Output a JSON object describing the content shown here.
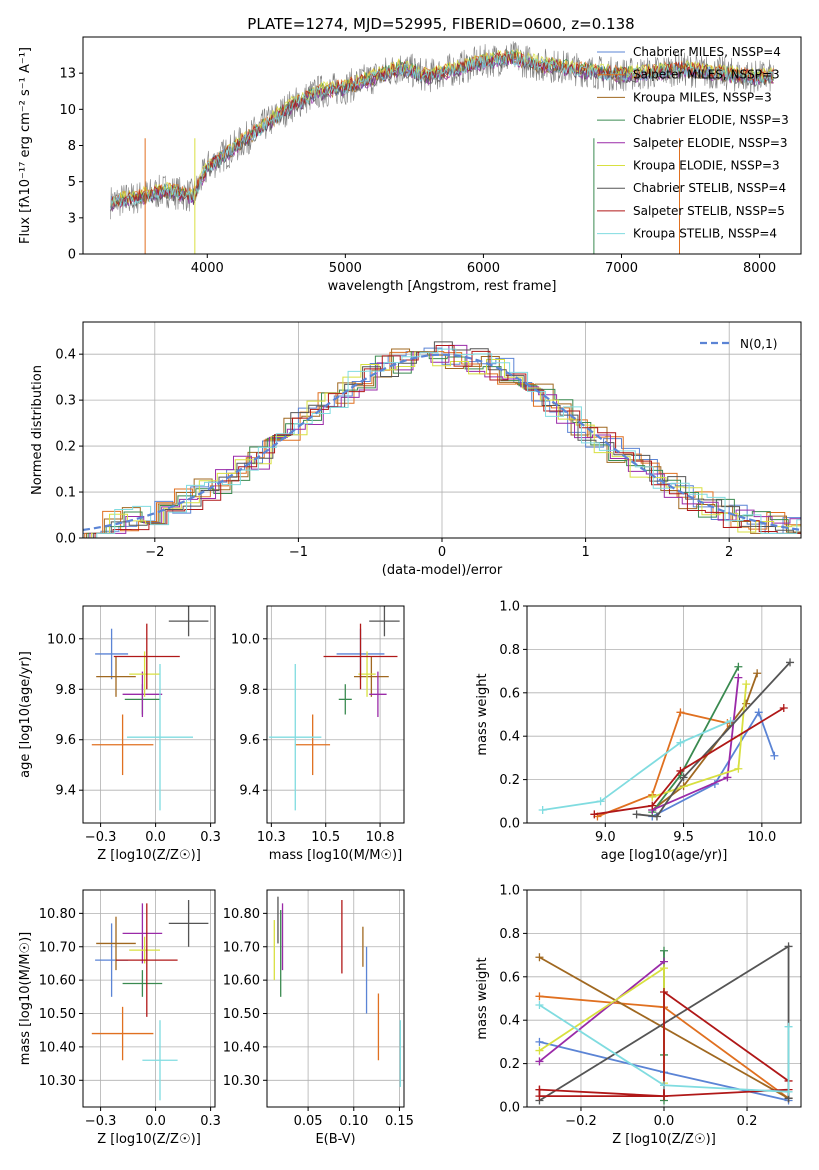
{
  "figure": {
    "title": "PLATE=1274, MJD=52995, FIBERID=0600, z=0.138"
  },
  "chart_data": [
    {
      "type": "line",
      "title": "PLATE=1274, MJD=52995, FIBERID=0600, z=0.138",
      "xlabel": "wavelength [Angstrom, rest frame]",
      "ylabel": "Flux [fλ10⁻¹⁷ erg cm⁻² s⁻¹ A⁻¹]",
      "xlim": [
        3100,
        8300
      ],
      "ylim": [
        0,
        15
      ],
      "xticks": [
        4000,
        5000,
        6000,
        7000,
        8000
      ],
      "yticks": [
        0.0,
        2.5,
        5.0,
        7.5,
        10.0,
        12.5
      ],
      "legend_position": "right",
      "series": [
        {
          "name": "Chabrier MILES, NSSP=4",
          "color": "#5b84d5"
        },
        {
          "name": "Salpeter MILES, NSSP=3",
          "color": "#e07020"
        },
        {
          "name": "Kroupa MILES, NSSP=3",
          "color": "#a06820"
        },
        {
          "name": "Chabrier ELODIE, NSSP=3",
          "color": "#3a8a50"
        },
        {
          "name": "Salpeter ELODIE, NSSP=3",
          "color": "#9a2aa8"
        },
        {
          "name": "Kroupa ELODIE, NSSP=3",
          "color": "#d8e040"
        },
        {
          "name": "Chabrier STELIB, NSSP=4",
          "color": "#555555"
        },
        {
          "name": "Salpeter STELIB, NSSP=5",
          "color": "#b01818"
        },
        {
          "name": "Kroupa STELIB, NSSP=4",
          "color": "#80dce0"
        }
      ],
      "continuum": {
        "x": [
          3300,
          3500,
          3700,
          3900,
          4000,
          4200,
          4400,
          4600,
          4800,
          5000,
          5200,
          5400,
          5600,
          5800,
          6000,
          6200,
          6400,
          6600,
          6800,
          7000,
          7200,
          7400,
          7600,
          7800,
          8000,
          8100
        ],
        "y": [
          3.6,
          3.9,
          4.4,
          4.0,
          6.0,
          7.4,
          8.8,
          10.2,
          11.2,
          11.5,
          12.2,
          12.9,
          12.3,
          12.8,
          13.3,
          13.6,
          13.1,
          12.9,
          12.6,
          12.4,
          12.5,
          12.8,
          12.6,
          12.4,
          12.2,
          12.3
        ]
      },
      "observed_data_color": "#808080"
    },
    {
      "type": "histogram",
      "xlabel": "(data-model)/error",
      "ylabel": "Normed distribution",
      "xlim": [
        -2.5,
        2.5
      ],
      "ylim": [
        0,
        0.47
      ],
      "xticks": [
        -2,
        -1,
        0,
        1,
        2
      ],
      "yticks": [
        0.0,
        0.1,
        0.2,
        0.3,
        0.4
      ],
      "grid": true,
      "legend_position": "top-right",
      "reference_curve": {
        "name": "N(0,1)",
        "color": "#5b84d5",
        "style": "dashed"
      }
    },
    {
      "type": "scatter",
      "xlabel": "Z [log10(Z/Z☉)]",
      "ylabel": "age  [log10(age/yr)]",
      "xlim": [
        -0.33,
        0.27
      ],
      "ylim": [
        9.27,
        10.13
      ],
      "xticks": [
        -0.25,
        0.0,
        0.25
      ],
      "yticks": [
        9.4,
        9.6,
        9.8,
        10.0
      ],
      "grid": true,
      "points": [
        {
          "series": "Chabrier MILES",
          "x": -0.2,
          "y": 9.94,
          "xerr": 0.075,
          "yerr": 0.1
        },
        {
          "series": "Salpeter MILES",
          "x": -0.15,
          "y": 9.58,
          "xerr": 0.14,
          "yerr": 0.12
        },
        {
          "series": "Kroupa MILES",
          "x": -0.18,
          "y": 9.85,
          "xerr": 0.09,
          "yerr": 0.08
        },
        {
          "series": "Chabrier ELODIE",
          "x": -0.06,
          "y": 9.76,
          "xerr": 0.08,
          "yerr": 0.06
        },
        {
          "series": "Salpeter ELODIE",
          "x": -0.06,
          "y": 9.78,
          "xerr": 0.09,
          "yerr": 0.09
        },
        {
          "series": "Kroupa ELODIE",
          "x": -0.05,
          "y": 9.86,
          "xerr": 0.07,
          "yerr": 0.09
        },
        {
          "series": "Chabrier STELIB",
          "x": 0.15,
          "y": 10.07,
          "xerr": 0.09,
          "yerr": 0.06
        },
        {
          "series": "Salpeter STELIB",
          "x": -0.04,
          "y": 9.93,
          "xerr": 0.15,
          "yerr": 0.13
        },
        {
          "series": "Kroupa STELIB",
          "x": 0.02,
          "y": 9.61,
          "xerr": 0.15,
          "yerr": 0.29
        }
      ]
    },
    {
      "type": "scatter",
      "xlabel": "mass [log10(M/M☉)]",
      "ylabel": "",
      "xlim": [
        10.23,
        10.86
      ],
      "ylim": [
        9.27,
        10.13
      ],
      "xticks": [
        10.25,
        10.5,
        10.75
      ],
      "yticks": [
        9.4,
        9.6,
        9.8,
        10.0
      ],
      "grid": true,
      "points": [
        {
          "series": "Chabrier MILES",
          "x": 10.66,
          "y": 9.94,
          "xerr": 0.11,
          "yerr": 0.1
        },
        {
          "series": "Salpeter MILES",
          "x": 10.44,
          "y": 9.58,
          "xerr": 0.08,
          "yerr": 0.12
        },
        {
          "series": "Kroupa MILES",
          "x": 10.71,
          "y": 9.85,
          "xerr": 0.08,
          "yerr": 0.08
        },
        {
          "series": "Chabrier ELODIE",
          "x": 10.59,
          "y": 9.76,
          "xerr": 0.03,
          "yerr": 0.06
        },
        {
          "series": "Salpeter ELODIE",
          "x": 10.74,
          "y": 9.78,
          "xerr": 0.04,
          "yerr": 0.09
        },
        {
          "series": "Kroupa ELODIE",
          "x": 10.69,
          "y": 9.86,
          "xerr": 0.04,
          "yerr": 0.09
        },
        {
          "series": "Chabrier STELIB",
          "x": 10.77,
          "y": 10.07,
          "xerr": 0.07,
          "yerr": 0.06
        },
        {
          "series": "Salpeter STELIB",
          "x": 10.66,
          "y": 9.93,
          "xerr": 0.17,
          "yerr": 0.13
        },
        {
          "series": "Kroupa STELIB",
          "x": 10.36,
          "y": 9.61,
          "xerr": 0.12,
          "yerr": 0.29
        }
      ]
    },
    {
      "type": "line",
      "xlabel": "age  [log10(age/yr)]",
      "ylabel": "mass weight",
      "xlim": [
        8.5,
        10.25
      ],
      "ylim": [
        0,
        1
      ],
      "xticks": [
        9.0,
        9.5,
        10.0
      ],
      "yticks": [
        0.0,
        0.2,
        0.4,
        0.6,
        0.8,
        1.0
      ],
      "grid": true,
      "series": [
        {
          "name": "Chabrier MILES",
          "x": [
            9.3,
            9.7,
            9.98,
            10.08
          ],
          "y": [
            0.03,
            0.18,
            0.51,
            0.31
          ]
        },
        {
          "name": "Salpeter MILES",
          "x": [
            8.95,
            9.3,
            9.48,
            9.78
          ],
          "y": [
            0.03,
            0.13,
            0.51,
            0.46
          ]
        },
        {
          "name": "Kroupa MILES",
          "x": [
            9.3,
            9.5,
            9.9,
            9.97
          ],
          "y": [
            0.06,
            0.17,
            0.55,
            0.69
          ]
        },
        {
          "name": "Chabrier ELODIE",
          "x": [
            9.3,
            9.48,
            9.85
          ],
          "y": [
            0.05,
            0.22,
            0.72
          ]
        },
        {
          "name": "Salpeter ELODIE",
          "x": [
            9.3,
            9.78,
            9.85
          ],
          "y": [
            0.06,
            0.21,
            0.67
          ]
        },
        {
          "name": "Kroupa ELODIE",
          "x": [
            9.3,
            9.85,
            9.9
          ],
          "y": [
            0.12,
            0.25,
            0.64
          ]
        },
        {
          "name": "Chabrier STELIB",
          "x": [
            9.2,
            9.33,
            9.5,
            10.18
          ],
          "y": [
            0.04,
            0.03,
            0.21,
            0.74
          ]
        },
        {
          "name": "Salpeter STELIB",
          "x": [
            8.93,
            9.3,
            9.48,
            10.14
          ],
          "y": [
            0.04,
            0.08,
            0.24,
            0.53
          ]
        },
        {
          "name": "Kroupa STELIB",
          "x": [
            8.6,
            8.97,
            9.48,
            9.8
          ],
          "y": [
            0.06,
            0.1,
            0.37,
            0.47
          ]
        }
      ]
    },
    {
      "type": "scatter",
      "xlabel": "Z [log10(Z/Z☉)]",
      "ylabel": "mass [log10(M/M☉)]",
      "xlim": [
        -0.33,
        0.27
      ],
      "ylim": [
        10.22,
        10.87
      ],
      "xticks": [
        -0.25,
        0.0,
        0.25
      ],
      "yticks": [
        10.3,
        10.4,
        10.5,
        10.6,
        10.7,
        10.8
      ],
      "grid": true,
      "points": [
        {
          "series": "Chabrier MILES",
          "x": -0.2,
          "y": 10.66,
          "xerr": 0.075,
          "yerr": 0.11
        },
        {
          "series": "Salpeter MILES",
          "x": -0.15,
          "y": 10.44,
          "xerr": 0.14,
          "yerr": 0.08
        },
        {
          "series": "Kroupa MILES",
          "x": -0.18,
          "y": 10.71,
          "xerr": 0.09,
          "yerr": 0.08
        },
        {
          "series": "Chabrier ELODIE",
          "x": -0.06,
          "y": 10.59,
          "xerr": 0.09,
          "yerr": 0.04
        },
        {
          "series": "Salpeter ELODIE",
          "x": -0.06,
          "y": 10.74,
          "xerr": 0.09,
          "yerr": 0.09
        },
        {
          "series": "Kroupa ELODIE",
          "x": -0.05,
          "y": 10.69,
          "xerr": 0.07,
          "yerr": 0.04
        },
        {
          "series": "Chabrier STELIB",
          "x": 0.15,
          "y": 10.77,
          "xerr": 0.09,
          "yerr": 0.07
        },
        {
          "series": "Salpeter STELIB",
          "x": -0.04,
          "y": 10.66,
          "xerr": 0.14,
          "yerr": 0.17
        },
        {
          "series": "Kroupa STELIB",
          "x": 0.02,
          "y": 10.36,
          "xerr": 0.08,
          "yerr": 0.12
        }
      ]
    },
    {
      "type": "scatter",
      "xlabel": "E(B-V)",
      "ylabel": "",
      "xlim": [
        0.005,
        0.155
      ],
      "ylim": [
        10.22,
        10.87
      ],
      "xticks": [
        0.05,
        0.1,
        0.15
      ],
      "yticks": [
        10.3,
        10.4,
        10.5,
        10.6,
        10.7,
        10.8
      ],
      "grid": true,
      "points": [
        {
          "series": "Chabrier MILES",
          "x": 0.114,
          "y": 10.6,
          "yerr": 0.1
        },
        {
          "series": "Salpeter MILES",
          "x": 0.127,
          "y": 10.46,
          "yerr": 0.1
        },
        {
          "series": "Kroupa MILES",
          "x": 0.11,
          "y": 10.7,
          "yerr": 0.06
        },
        {
          "series": "Chabrier ELODIE",
          "x": 0.02,
          "y": 10.68,
          "yerr": 0.13
        },
        {
          "series": "Salpeter ELODIE",
          "x": 0.022,
          "y": 10.73,
          "yerr": 0.1
        },
        {
          "series": "Kroupa ELODIE",
          "x": 0.013,
          "y": 10.69,
          "yerr": 0.09
        },
        {
          "series": "Chabrier STELIB",
          "x": 0.017,
          "y": 10.78,
          "yerr": 0.07
        },
        {
          "series": "Salpeter STELIB",
          "x": 0.087,
          "y": 10.73,
          "yerr": 0.11
        },
        {
          "series": "Kroupa STELIB",
          "x": 0.151,
          "y": 10.38,
          "yerr": 0.1
        }
      ]
    },
    {
      "type": "line",
      "xlabel": "Z [log10(Z/Z☉)]",
      "ylabel": "mass weight",
      "xlim": [
        -0.33,
        0.33
      ],
      "ylim": [
        0,
        1
      ],
      "xticks": [
        -0.2,
        0.0,
        0.2
      ],
      "yticks": [
        0.0,
        0.2,
        0.4,
        0.6,
        0.8,
        1.0
      ],
      "grid": true,
      "series": [
        {
          "name": "Chabrier MILES",
          "x": [
            -0.3,
            0.0,
            0.3
          ],
          "y": [
            0.3,
            0.16,
            0.03
          ]
        },
        {
          "name": "Salpeter MILES",
          "x": [
            -0.3,
            0.0,
            0.3
          ],
          "y": [
            0.51,
            0.46,
            0.04
          ]
        },
        {
          "name": "Kroupa MILES",
          "x": [
            -0.3,
            0.3,
            0.3
          ],
          "y": [
            0.69,
            0.04,
            0.04
          ]
        },
        {
          "name": "Chabrier ELODIE",
          "x": [
            0.0,
            0.0,
            0.0
          ],
          "y": [
            0.03,
            0.24,
            0.72
          ]
        },
        {
          "name": "Salpeter ELODIE",
          "x": [
            -0.3,
            0.0
          ],
          "y": [
            0.21,
            0.67
          ]
        },
        {
          "name": "Kroupa ELODIE",
          "x": [
            -0.3,
            0.0,
            0.0
          ],
          "y": [
            0.26,
            0.64,
            0.11
          ]
        },
        {
          "name": "Chabrier STELIB",
          "x": [
            -0.3,
            0.3,
            0.3
          ],
          "y": [
            0.03,
            0.74,
            0.04
          ]
        },
        {
          "name": "Salpeter STELIB",
          "x": [
            -0.3,
            0.0,
            0.0,
            0.3,
            0.3,
            0.0,
            -0.3,
            -0.3
          ],
          "y": [
            0.08,
            0.05,
            0.53,
            0.12,
            0.08,
            0.05,
            0.05,
            0.08
          ]
        },
        {
          "name": "Kroupa STELIB",
          "x": [
            -0.3,
            0.0,
            0.3,
            0.3
          ],
          "y": [
            0.47,
            0.1,
            0.07,
            0.37
          ]
        }
      ]
    }
  ]
}
